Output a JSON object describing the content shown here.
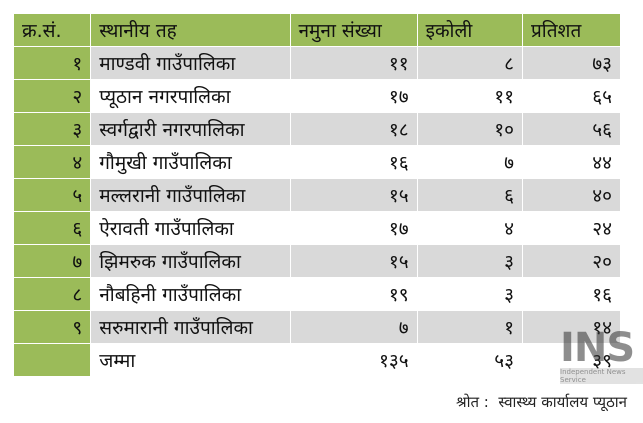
{
  "table": {
    "columns": [
      "क्र.सं.",
      "स्थानीय तह",
      "नमुना संख्या",
      "इकोली",
      "प्रतिशत"
    ],
    "rows": [
      [
        "१",
        "माण्डवी गाउँपालिका",
        "११",
        "८",
        "७३"
      ],
      [
        "२",
        "प्यूठान नगरपालिका",
        "१७",
        "११",
        "६५"
      ],
      [
        "३",
        "स्वर्गद्वारी नगरपालिका",
        "१८",
        "१०",
        "५६"
      ],
      [
        "४",
        "गौमुखी गाउँपालिका",
        "१६",
        "७",
        "४४"
      ],
      [
        "५",
        "मल्लरानी गाउँपालिका",
        "१५",
        "६",
        "४०"
      ],
      [
        "६",
        "ऐरावती गाउँपालिका",
        "१७",
        "४",
        "२४"
      ],
      [
        "७",
        "झिमरुक गाउँपालिका",
        "१५",
        "३",
        "२०"
      ],
      [
        "८",
        "नौबहिनी गाउँपालिका",
        "१९",
        "३",
        "१६"
      ],
      [
        "९",
        "सरुमारानी गाउँपालिका",
        "७",
        "१",
        "१४"
      ]
    ],
    "total": {
      "label": "जम्मा",
      "values": [
        "१३५",
        "५३",
        "३९"
      ]
    }
  },
  "source": "श्रोत :  स्वास्थ्य कार्यालय प्यूठान",
  "watermark": {
    "logo": "INS",
    "tagline": "Independent News Service"
  }
}
